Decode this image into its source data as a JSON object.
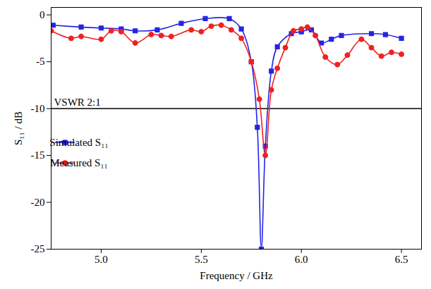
{
  "chart_data": {
    "type": "line",
    "x_label": "Frequency / GHz",
    "y_label": "S₁₁ / dB",
    "xlim": [
      4.75,
      6.6
    ],
    "ylim": [
      -25,
      0.8
    ],
    "xticks": [
      {
        "value": 5,
        "label": "5.0"
      },
      {
        "value": 5.5,
        "label": "5.5"
      },
      {
        "value": 6,
        "label": "6.0"
      },
      {
        "value": 6.5,
        "label": "6.5"
      }
    ],
    "yticks": [
      0,
      -5,
      -10,
      -15,
      -20,
      -25
    ],
    "legend": "left",
    "reference_line": {
      "value": -10,
      "label": "VSWR 2:1"
    },
    "series": [
      {
        "name": "Simulated S₁₁",
        "color": "#2424e6",
        "marker": "square",
        "x": [
          4.76,
          4.9,
          5.0,
          5.1,
          5.17,
          5.28,
          5.4,
          5.52,
          5.64,
          5.7,
          5.75,
          5.78,
          5.8,
          5.82,
          5.85,
          5.88,
          5.95,
          6.0,
          6.05,
          6.1,
          6.15,
          6.2,
          6.35,
          6.42,
          6.5
        ],
        "values": [
          -1.1,
          -1.3,
          -1.4,
          -1.5,
          -1.7,
          -1.6,
          -0.9,
          -0.4,
          -0.4,
          -1.5,
          -5,
          -12,
          -25,
          -14,
          -6,
          -3.4,
          -2,
          -1.8,
          -1.6,
          -3,
          -2.6,
          -2.2,
          -2.0,
          -2.1,
          -2.5
        ]
      },
      {
        "name": "Measured S₁₁",
        "color": "#ee2222",
        "marker": "circle",
        "x": [
          4.75,
          4.85,
          4.9,
          5.0,
          5.05,
          5.1,
          5.17,
          5.25,
          5.3,
          5.35,
          5.45,
          5.5,
          5.55,
          5.6,
          5.65,
          5.7,
          5.75,
          5.79,
          5.82,
          5.85,
          5.88,
          5.92,
          5.96,
          6.0,
          6.03,
          6.07,
          6.12,
          6.18,
          6.23,
          6.3,
          6.35,
          6.4,
          6.45,
          6.5
        ],
        "values": [
          -1.7,
          -2.5,
          -2.3,
          -2.6,
          -1.7,
          -1.8,
          -3.0,
          -2.1,
          -2.2,
          -2.3,
          -1.6,
          -1.8,
          -1.2,
          -1.1,
          -1.6,
          -2.5,
          -5,
          -9,
          -15,
          -8,
          -5.7,
          -3.5,
          -1.7,
          -1.5,
          -1.3,
          -2.2,
          -4.5,
          -5.3,
          -4.3,
          -2.6,
          -3.5,
          -4.4,
          -4.0,
          -4.2
        ]
      }
    ]
  }
}
